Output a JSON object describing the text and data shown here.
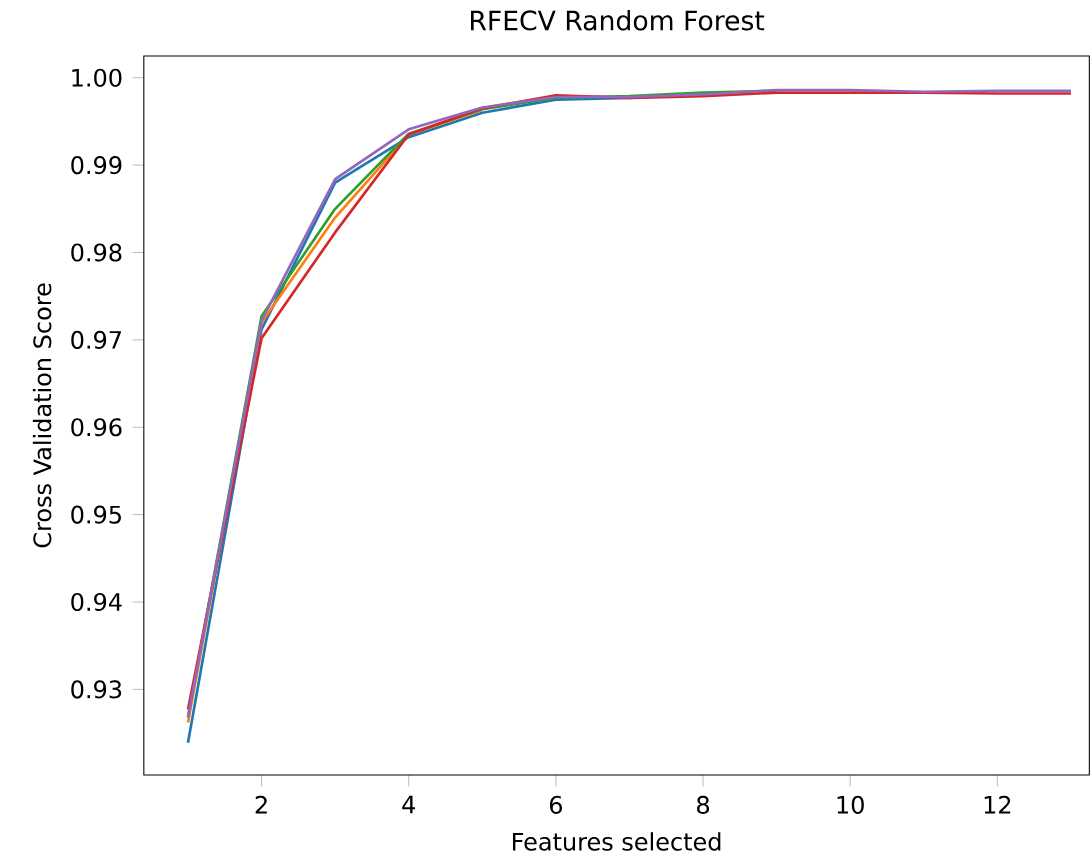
{
  "chart_data": {
    "type": "line",
    "title": "RFECV Random Forest",
    "xlabel": "Features selected",
    "ylabel": "Cross Validation Score",
    "x": [
      1,
      2,
      3,
      4,
      5,
      6,
      7,
      8,
      9,
      10,
      11,
      12,
      13
    ],
    "xlim": [
      0.4,
      13.25
    ],
    "ylim": [
      0.9202,
      1.0025
    ],
    "xticks": [
      2,
      4,
      6,
      8,
      10,
      12
    ],
    "yticks": [
      {
        "value": 0.93,
        "label": "0.93"
      },
      {
        "value": 0.94,
        "label": "0.94"
      },
      {
        "value": 0.95,
        "label": "0.95"
      },
      {
        "value": 0.96,
        "label": "0.96"
      },
      {
        "value": 0.97,
        "label": "0.97"
      },
      {
        "value": 0.98,
        "label": "0.98"
      },
      {
        "value": 0.99,
        "label": "0.99"
      },
      {
        "value": 1.0,
        "label": "1.00"
      }
    ],
    "series": [
      {
        "color": "#1f77b4",
        "values": [
          0.9239,
          0.9712,
          0.988,
          0.9932,
          0.996,
          0.9975,
          0.9977,
          0.9981,
          null,
          null,
          null,
          null,
          null
        ]
      },
      {
        "color": "#ff7f0e",
        "values": [
          0.9262,
          0.972,
          0.984,
          0.9935,
          0.9963,
          null,
          null,
          null,
          null,
          null,
          null,
          null,
          null
        ]
      },
      {
        "color": "#2ca02c",
        "values": [
          0.9268,
          0.9727,
          0.985,
          0.9936,
          0.9964,
          0.9977,
          0.9979,
          0.9983,
          0.9985,
          null,
          null,
          null,
          null
        ]
      },
      {
        "color": "#d62728",
        "values": [
          0.9277,
          0.9702,
          0.9823,
          0.9935,
          0.9965,
          0.998,
          0.9977,
          0.9979,
          0.9983,
          0.9983,
          0.9983,
          0.9982,
          0.9982
        ]
      },
      {
        "color": "#9467bd",
        "values": [
          0.9268,
          0.9722,
          0.9884,
          0.9941,
          0.9966,
          0.9978,
          0.9978,
          0.9981,
          0.9986,
          0.9986,
          0.9984,
          0.9985,
          0.9985
        ]
      }
    ],
    "grid": false,
    "marker": "none",
    "line_style": "solid"
  }
}
